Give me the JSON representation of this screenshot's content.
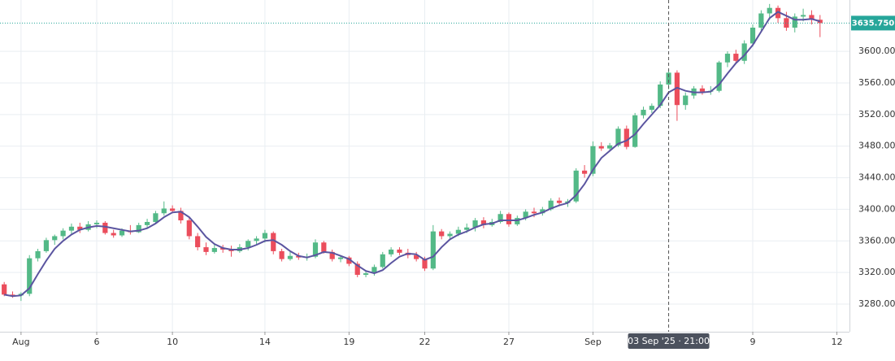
{
  "chart_data": {
    "type": "candlestick",
    "xlim": [
      -0.5,
      100.5
    ],
    "xticks": [
      {
        "value": 2,
        "label": "Aug"
      },
      {
        "value": 11,
        "label": "6"
      },
      {
        "value": 20,
        "label": "10"
      },
      {
        "value": 31,
        "label": "14"
      },
      {
        "value": 41,
        "label": "19"
      },
      {
        "value": 50,
        "label": "22"
      },
      {
        "value": 60,
        "label": "27"
      },
      {
        "value": 70,
        "label": "Sep"
      },
      {
        "value": 89,
        "label": "9"
      },
      {
        "value": 99,
        "label": "12"
      }
    ],
    "ylim": [
      3245,
      3665
    ],
    "yticks": [
      {
        "value": 3280,
        "label": "3280.000"
      },
      {
        "value": 3320,
        "label": "3320.000"
      },
      {
        "value": 3360,
        "label": "3360.000"
      },
      {
        "value": 3400,
        "label": "3400.000"
      },
      {
        "value": 3440,
        "label": "3440.000"
      },
      {
        "value": 3480,
        "label": "3480.000"
      },
      {
        "value": 3520,
        "label": "3520.000"
      },
      {
        "value": 3560,
        "label": "3560.000"
      },
      {
        "value": 3600,
        "label": "3600.000"
      }
    ],
    "grid": true,
    "up_color": "#53b987",
    "down_color": "#eb4d5c",
    "ma_color": "#5b55a0",
    "last_price": {
      "value": 3635.75,
      "label": "3635.750",
      "color": "#26a69a"
    },
    "crosshair": {
      "x": 79,
      "label": "03 Sep '25 · 21:00"
    },
    "open": [
      3305,
      3292,
      3291,
      3293,
      3338,
      3347,
      3361,
      3366,
      3373,
      3378,
      3374,
      3381,
      3383,
      3370,
      3367,
      3373,
      3371,
      3380,
      3384,
      3395,
      3401,
      3398,
      3386,
      3366,
      3352,
      3346,
      3351,
      3349,
      3347,
      3352,
      3360,
      3363,
      3370,
      3347,
      3337,
      3341,
      3339,
      3340,
      3358,
      3346,
      3337,
      3339,
      3331,
      3317,
      3319,
      3327,
      3343,
      3349,
      3345,
      3342,
      3337,
      3325,
      3372,
      3366,
      3369,
      3374,
      3377,
      3386,
      3380,
      3384,
      3394,
      3381,
      3389,
      3397,
      3395,
      3400,
      3411,
      3408,
      3410,
      3449,
      3445,
      3480,
      3477,
      3481,
      3502,
      3479,
      3519,
      3526,
      3531,
      3558,
      3573,
      3532,
      3544,
      3553,
      3549,
      3550,
      3586,
      3597,
      3588,
      3610,
      3630,
      3648,
      3655,
      3642,
      3630,
      3644,
      3646,
      3640
    ],
    "high": [
      3308,
      3296,
      3295,
      3342,
      3350,
      3364,
      3368,
      3376,
      3382,
      3383,
      3385,
      3386,
      3385,
      3374,
      3376,
      3380,
      3383,
      3388,
      3398,
      3410,
      3405,
      3402,
      3390,
      3370,
      3358,
      3356,
      3355,
      3354,
      3356,
      3362,
      3366,
      3374,
      3372,
      3350,
      3346,
      3345,
      3344,
      3362,
      3360,
      3349,
      3342,
      3341,
      3334,
      3322,
      3330,
      3346,
      3352,
      3352,
      3350,
      3346,
      3340,
      3380,
      3375,
      3372,
      3378,
      3382,
      3389,
      3390,
      3388,
      3398,
      3396,
      3392,
      3400,
      3402,
      3403,
      3414,
      3415,
      3413,
      3452,
      3456,
      3486,
      3485,
      3484,
      3505,
      3506,
      3522,
      3530,
      3534,
      3562,
      3578,
      3576,
      3548,
      3556,
      3557,
      3556,
      3588,
      3600,
      3602,
      3614,
      3634,
      3652,
      3660,
      3658,
      3650,
      3648,
      3654,
      3652,
      3646
    ],
    "low": [
      3290,
      3288,
      3284,
      3290,
      3334,
      3345,
      3355,
      3362,
      3368,
      3370,
      3372,
      3376,
      3368,
      3364,
      3365,
      3368,
      3370,
      3376,
      3382,
      3392,
      3395,
      3382,
      3362,
      3348,
      3342,
      3344,
      3345,
      3340,
      3345,
      3348,
      3355,
      3358,
      3343,
      3334,
      3335,
      3336,
      3335,
      3338,
      3344,
      3334,
      3333,
      3328,
      3314,
      3314,
      3316,
      3325,
      3340,
      3342,
      3338,
      3334,
      3322,
      3323,
      3362,
      3363,
      3366,
      3370,
      3372,
      3376,
      3378,
      3382,
      3378,
      3379,
      3386,
      3390,
      3392,
      3398,
      3404,
      3403,
      3408,
      3440,
      3442,
      3474,
      3474,
      3479,
      3476,
      3478,
      3515,
      3522,
      3528,
      3552,
      3512,
      3526,
      3540,
      3545,
      3545,
      3548,
      3580,
      3585,
      3584,
      3606,
      3626,
      3640,
      3636,
      3626,
      3624,
      3638,
      3634,
      3618
    ],
    "close": [
      3292,
      3291,
      3293,
      3338,
      3347,
      3361,
      3366,
      3373,
      3378,
      3374,
      3381,
      3383,
      3370,
      3367,
      3373,
      3371,
      3380,
      3384,
      3395,
      3401,
      3398,
      3386,
      3366,
      3352,
      3346,
      3351,
      3349,
      3347,
      3352,
      3360,
      3363,
      3370,
      3347,
      3337,
      3341,
      3339,
      3340,
      3358,
      3346,
      3337,
      3339,
      3331,
      3317,
      3319,
      3327,
      3343,
      3349,
      3345,
      3342,
      3337,
      3325,
      3372,
      3366,
      3369,
      3374,
      3377,
      3386,
      3380,
      3384,
      3394,
      3381,
      3389,
      3397,
      3395,
      3400,
      3411,
      3408,
      3410,
      3449,
      3445,
      3480,
      3477,
      3481,
      3502,
      3479,
      3519,
      3526,
      3531,
      3558,
      3573,
      3532,
      3544,
      3553,
      3549,
      3550,
      3586,
      3597,
      3588,
      3610,
      3630,
      3648,
      3655,
      3642,
      3630,
      3644,
      3646,
      3640,
      3635.75
    ],
    "ma": [
      3292,
      3290,
      3291,
      3300,
      3318,
      3335,
      3350,
      3360,
      3368,
      3374,
      3377,
      3379,
      3378,
      3376,
      3374,
      3372,
      3373,
      3376,
      3382,
      3390,
      3396,
      3397,
      3390,
      3378,
      3365,
      3356,
      3351,
      3349,
      3349,
      3351,
      3355,
      3360,
      3361,
      3355,
      3347,
      3341,
      3339,
      3342,
      3346,
      3345,
      3341,
      3337,
      3329,
      3322,
      3319,
      3323,
      3332,
      3340,
      3344,
      3343,
      3336,
      3340,
      3352,
      3362,
      3368,
      3372,
      3377,
      3381,
      3382,
      3386,
      3386,
      3386,
      3389,
      3393,
      3396,
      3401,
      3405,
      3408,
      3418,
      3432,
      3450,
      3465,
      3474,
      3483,
      3487,
      3495,
      3508,
      3520,
      3532,
      3548,
      3554,
      3550,
      3548,
      3548,
      3549,
      3558,
      3572,
      3585,
      3595,
      3608,
      3625,
      3642,
      3650,
      3645,
      3640,
      3640,
      3641,
      3638
    ]
  }
}
